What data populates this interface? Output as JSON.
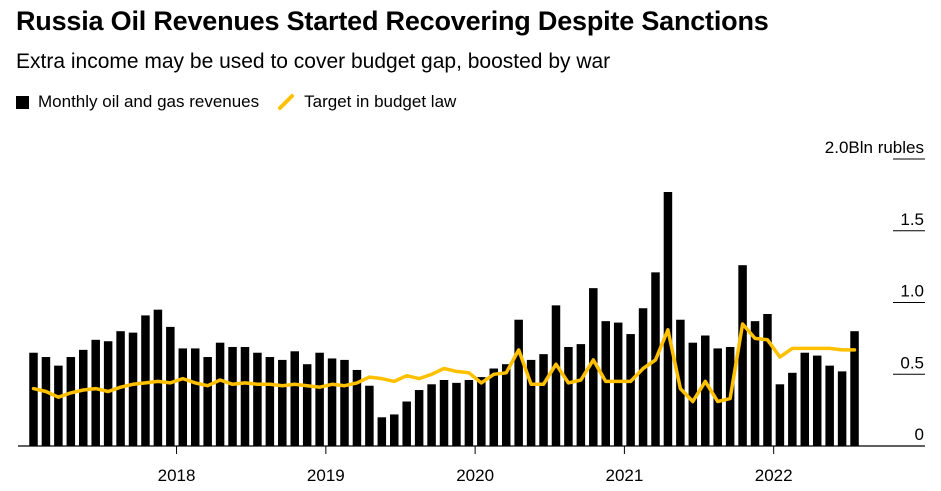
{
  "chart_data": {
    "type": "bar",
    "title": "Russia Oil Revenues Started Recovering Despite Sanctions",
    "subtitle": "Extra income may be used to cover budget gap, boosted by war",
    "unit_label": "Bln rubles",
    "legend": [
      {
        "name": "Monthly oil and gas revenues",
        "color": "#000000",
        "kind": "bar"
      },
      {
        "name": "Target in budget law",
        "color": "#FFC000",
        "kind": "line"
      }
    ],
    "y_ticks": [
      {
        "value": 0,
        "label": "0"
      },
      {
        "value": 0.5,
        "label": "0.5"
      },
      {
        "value": 1.0,
        "label": "1.0"
      },
      {
        "value": 1.5,
        "label": "1.5"
      },
      {
        "value": 2.0,
        "label": "2.0"
      }
    ],
    "ylim": [
      0,
      2.0
    ],
    "x_ticks": [
      {
        "month_index": 11,
        "label": "2018"
      },
      {
        "month_index": 23,
        "label": "2019"
      },
      {
        "month_index": 35,
        "label": "2020"
      },
      {
        "month_index": 47,
        "label": "2021"
      },
      {
        "month_index": 59,
        "label": "2022"
      }
    ],
    "start": "2017-01",
    "series": [
      {
        "name": "Monthly oil and gas revenues",
        "type": "bar",
        "values": [
          0.65,
          0.62,
          0.56,
          0.62,
          0.67,
          0.74,
          0.73,
          0.8,
          0.79,
          0.91,
          0.95,
          0.83,
          0.68,
          0.68,
          0.62,
          0.72,
          0.69,
          0.69,
          0.65,
          0.62,
          0.6,
          0.66,
          0.57,
          0.65,
          0.61,
          0.6,
          0.53,
          0.42,
          0.2,
          0.22,
          0.31,
          0.39,
          0.43,
          0.46,
          0.44,
          0.46,
          0.48,
          0.54,
          0.57,
          0.88,
          0.6,
          0.64,
          0.98,
          0.69,
          0.71,
          1.1,
          0.87,
          0.86,
          0.78,
          0.96,
          1.21,
          1.77,
          0.88,
          0.72,
          0.77,
          0.68,
          0.69,
          1.26,
          0.87,
          0.92,
          0.43,
          0.51,
          0.65,
          0.63,
          0.56,
          0.52,
          0.8
        ]
      },
      {
        "name": "Target in budget law",
        "type": "line",
        "values": [
          0.4,
          0.38,
          0.34,
          0.37,
          0.39,
          0.4,
          0.38,
          0.41,
          0.43,
          0.44,
          0.45,
          0.44,
          0.47,
          0.44,
          0.42,
          0.46,
          0.43,
          0.44,
          0.43,
          0.43,
          0.42,
          0.43,
          0.42,
          0.41,
          0.43,
          0.42,
          0.44,
          0.48,
          0.47,
          0.45,
          0.49,
          0.47,
          0.5,
          0.54,
          0.52,
          0.51,
          0.44,
          0.5,
          0.51,
          0.67,
          0.43,
          0.43,
          0.57,
          0.44,
          0.46,
          0.6,
          0.45,
          0.45,
          0.45,
          0.54,
          0.6,
          0.81,
          0.4,
          0.31,
          0.45,
          0.31,
          0.33,
          0.85,
          0.75,
          0.74,
          0.62,
          0.68,
          0.68,
          0.68,
          0.68,
          0.67,
          0.67
        ]
      }
    ]
  }
}
